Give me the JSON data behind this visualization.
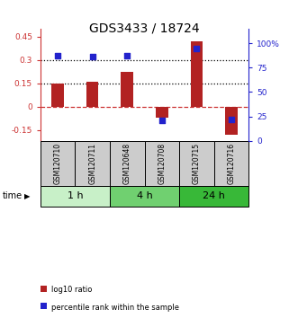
{
  "title": "GDS3433 / 18724",
  "samples": [
    "GSM120710",
    "GSM120711",
    "GSM120648",
    "GSM120708",
    "GSM120715",
    "GSM120716"
  ],
  "log10_ratio": [
    0.15,
    0.16,
    0.22,
    -0.07,
    0.42,
    -0.18
  ],
  "percentile_rank": [
    87,
    86,
    87,
    21,
    95,
    22
  ],
  "time_groups": [
    {
      "label": "1 h",
      "samples": [
        0,
        1
      ],
      "color": "#c8f0c8"
    },
    {
      "label": "4 h",
      "samples": [
        2,
        3
      ],
      "color": "#70d070"
    },
    {
      "label": "24 h",
      "samples": [
        4,
        5
      ],
      "color": "#38b838"
    }
  ],
  "bar_color": "#b22222",
  "dot_color": "#2222cc",
  "ylim_left": [
    -0.22,
    0.5
  ],
  "ylim_right": [
    0,
    115
  ],
  "yticks_left": [
    -0.15,
    0,
    0.15,
    0.3,
    0.45
  ],
  "yticks_right": [
    0,
    25,
    50,
    75,
    100
  ],
  "ytick_labels_right": [
    "0",
    "25",
    "50",
    "75",
    "100%"
  ],
  "hline_dotted": [
    0.15,
    0.3
  ],
  "hline_dashed": 0.0,
  "background_color": "#ffffff",
  "sample_box_color": "#cccccc",
  "legend_bar_label": "log10 ratio",
  "legend_dot_label": "percentile rank within the sample",
  "time_label": "time",
  "bar_width": 0.35
}
